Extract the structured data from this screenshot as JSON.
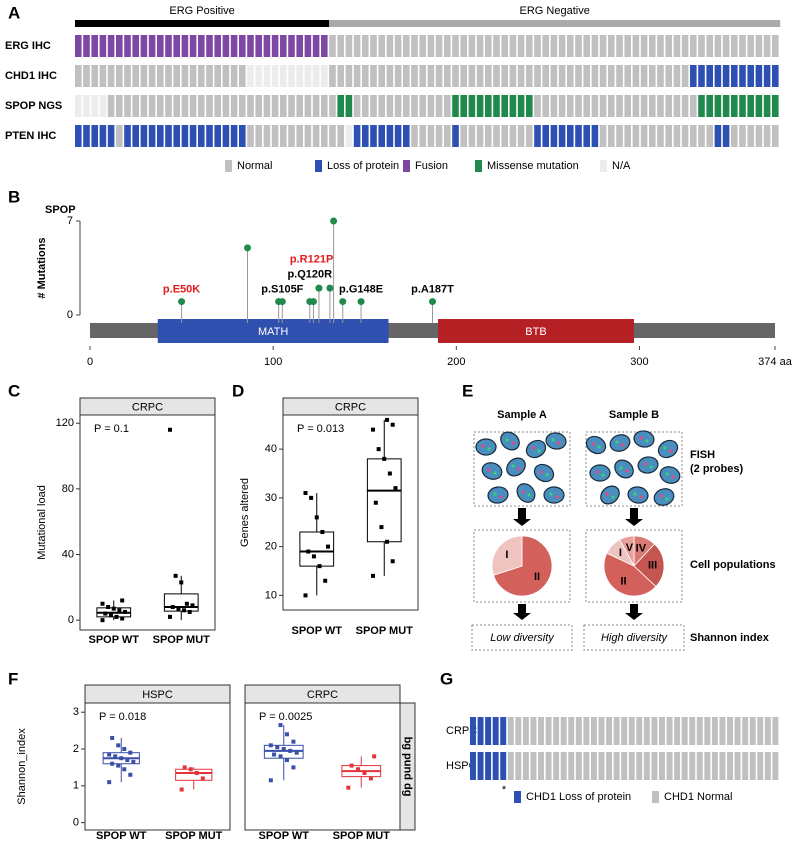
{
  "panel_labels": [
    "A",
    "B",
    "C",
    "D",
    "E",
    "F",
    "G"
  ],
  "chart_data": [
    {
      "type": "oncoprint",
      "header": [
        {
          "label": "ERG Positive",
          "span": 31,
          "color": "#000000"
        },
        {
          "label": "ERG Negative",
          "span": 55,
          "color": "#aaaaaa"
        }
      ],
      "series": [
        {
          "name": "ERG IHC",
          "values": [
            "Fusion",
            "Fusion",
            "Fusion",
            "Fusion",
            "Fusion",
            "Fusion",
            "Fusion",
            "Fusion",
            "Fusion",
            "Fusion",
            "Fusion",
            "Fusion",
            "Fusion",
            "Fusion",
            "Fusion",
            "Fusion",
            "Fusion",
            "Fusion",
            "Fusion",
            "Fusion",
            "Fusion",
            "Fusion",
            "Fusion",
            "Fusion",
            "Fusion",
            "Fusion",
            "Fusion",
            "Fusion",
            "Fusion",
            "Fusion",
            "Fusion",
            "Normal",
            "Normal",
            "Normal",
            "Normal",
            "Normal",
            "Normal",
            "Normal",
            "Normal",
            "Normal",
            "Normal",
            "Normal",
            "Normal",
            "Normal",
            "Normal",
            "Normal",
            "Normal",
            "Normal",
            "Normal",
            "Normal",
            "Normal",
            "Normal",
            "Normal",
            "Normal",
            "Normal",
            "Normal",
            "Normal",
            "Normal",
            "Normal",
            "Normal",
            "Normal",
            "Normal",
            "Normal",
            "Normal",
            "Normal",
            "Normal",
            "Normal",
            "Normal",
            "Normal",
            "Normal",
            "Normal",
            "Normal",
            "Normal",
            "Normal",
            "Normal",
            "Normal",
            "Normal",
            "Normal",
            "Normal",
            "Normal",
            "Normal",
            "Normal",
            "Normal",
            "Normal",
            "Normal",
            "Normal"
          ]
        },
        {
          "name": "CHD1 IHC",
          "values": [
            "Normal",
            "Normal",
            "Normal",
            "Normal",
            "Normal",
            "Normal",
            "Normal",
            "Normal",
            "Normal",
            "Normal",
            "Normal",
            "Normal",
            "Normal",
            "Normal",
            "Normal",
            "Normal",
            "Normal",
            "Normal",
            "Normal",
            "Normal",
            "Normal",
            "N/A",
            "N/A",
            "N/A",
            "N/A",
            "N/A",
            "N/A",
            "N/A",
            "N/A",
            "N/A",
            "N/A",
            "Normal",
            "Normal",
            "Normal",
            "Normal",
            "Normal",
            "Normal",
            "Normal",
            "Normal",
            "Normal",
            "Normal",
            "Normal",
            "Normal",
            "Normal",
            "Normal",
            "Normal",
            "Normal",
            "Normal",
            "Normal",
            "Normal",
            "Normal",
            "Normal",
            "Normal",
            "Normal",
            "Normal",
            "Normal",
            "Normal",
            "Normal",
            "Normal",
            "Normal",
            "Normal",
            "Normal",
            "Normal",
            "Normal",
            "Normal",
            "Normal",
            "Normal",
            "Normal",
            "Normal",
            "Normal",
            "Normal",
            "Normal",
            "Normal",
            "Normal",
            "Normal",
            "Loss of protein",
            "Loss of protein",
            "Loss of protein",
            "Loss of protein",
            "Loss of protein",
            "Loss of protein",
            "Loss of protein",
            "Loss of protein",
            "Loss of protein",
            "Loss of protein",
            "Loss of protein"
          ]
        },
        {
          "name": "SPOP NGS",
          "values": [
            "N/A",
            "N/A",
            "N/A",
            "N/A",
            "Normal",
            "Normal",
            "Normal",
            "Normal",
            "Normal",
            "Normal",
            "Normal",
            "Normal",
            "Normal",
            "Normal",
            "Normal",
            "Normal",
            "Normal",
            "Normal",
            "Normal",
            "Normal",
            "Normal",
            "Normal",
            "Normal",
            "Normal",
            "Normal",
            "Normal",
            "Normal",
            "Normal",
            "Normal",
            "Normal",
            "Normal",
            "Normal",
            "Missense mutation",
            "Missense mutation",
            "Normal",
            "Normal",
            "Normal",
            "Normal",
            "Normal",
            "Normal",
            "Normal",
            "Normal",
            "Normal",
            "Normal",
            "Normal",
            "Normal",
            "Missense mutation",
            "Missense mutation",
            "Missense mutation",
            "Missense mutation",
            "Missense mutation",
            "Missense mutation",
            "Missense mutation",
            "Missense mutation",
            "Missense mutation",
            "Missense mutation",
            "Normal",
            "Normal",
            "Normal",
            "Normal",
            "Normal",
            "Normal",
            "Normal",
            "Normal",
            "Normal",
            "Normal",
            "Normal",
            "Normal",
            "Normal",
            "Normal",
            "Normal",
            "Normal",
            "Normal",
            "Normal",
            "Normal",
            "Normal",
            "Missense mutation",
            "Missense mutation",
            "Missense mutation",
            "Missense mutation",
            "Missense mutation",
            "Missense mutation",
            "Missense mutation",
            "Missense mutation",
            "Missense mutation",
            "Missense mutation"
          ]
        },
        {
          "name": "PTEN IHC",
          "values": [
            "Loss of protein",
            "Loss of protein",
            "Loss of protein",
            "Loss of protein",
            "Loss of protein",
            "Normal",
            "Loss of protein",
            "Loss of protein",
            "Loss of protein",
            "Loss of protein",
            "Loss of protein",
            "Loss of protein",
            "Loss of protein",
            "Loss of protein",
            "Loss of protein",
            "Loss of protein",
            "Loss of protein",
            "Loss of protein",
            "Loss of protein",
            "Loss of protein",
            "Loss of protein",
            "Normal",
            "Normal",
            "Normal",
            "Normal",
            "Normal",
            "Normal",
            "Normal",
            "Normal",
            "Normal",
            "Normal",
            "Normal",
            "Normal",
            "N/A",
            "Loss of protein",
            "Loss of protein",
            "Loss of protein",
            "Loss of protein",
            "Loss of protein",
            "Loss of protein",
            "Loss of protein",
            "Normal",
            "Normal",
            "Normal",
            "Normal",
            "Normal",
            "Loss of protein",
            "Normal",
            "Normal",
            "Normal",
            "Normal",
            "Normal",
            "Normal",
            "Normal",
            "Normal",
            "Normal",
            "Loss of protein",
            "Loss of protein",
            "Loss of protein",
            "Loss of protein",
            "Loss of protein",
            "Loss of protein",
            "Loss of protein",
            "Loss of protein",
            "Normal",
            "Normal",
            "Normal",
            "Normal",
            "Normal",
            "Normal",
            "Normal",
            "Normal",
            "Normal",
            "Normal",
            "Normal",
            "Normal",
            "Normal",
            "Normal",
            "Loss of protein",
            "Loss of protein",
            "Normal",
            "Normal",
            "Normal",
            "Normal",
            "Normal",
            "Normal"
          ]
        }
      ],
      "legend": [
        {
          "label": "Normal",
          "color": "#c0c0c0"
        },
        {
          "label": "Loss of protein",
          "color": "#2f50b3"
        },
        {
          "label": "Fusion",
          "color": "#7e47a3"
        },
        {
          "label": "Missense mutation",
          "color": "#1f8a4c"
        },
        {
          "label": "N/A",
          "color": "#ececec"
        }
      ]
    },
    {
      "type": "lollipop",
      "title": "SPOP",
      "ylabel": "# Mutations",
      "x": [
        50,
        86,
        103,
        105,
        120,
        122,
        125,
        131,
        133,
        138,
        148,
        187
      ],
      "values": [
        1,
        5,
        1,
        1,
        1,
        1,
        2,
        2,
        7,
        1,
        1,
        1
      ],
      "color": "#1f8a4c",
      "xlim": [
        0,
        374
      ],
      "xticks": [
        0,
        100,
        200,
        300,
        {
          "value": 374,
          "label": "374 aa"
        }
      ],
      "ylim": [
        0,
        7
      ],
      "yticks": [
        0,
        7
      ],
      "domains": [
        {
          "name": "MATH",
          "start": 37,
          "end": 163,
          "color": "#3050b0"
        },
        {
          "name": "BTB",
          "start": 190,
          "end": 297,
          "color": "#b52025"
        }
      ],
      "annotations": [
        {
          "text": "p.E50K",
          "position": 50,
          "color": "#e41a1c"
        },
        {
          "text": "p.S105F",
          "position": 105,
          "color": "#000000"
        },
        {
          "text": "p.Q120R",
          "position": 120,
          "color": "#000000"
        },
        {
          "text": "p.R121P",
          "position": 121,
          "color": "#e41a1c"
        },
        {
          "text": "p.G148E",
          "position": 148,
          "color": "#000000"
        },
        {
          "text": "p.A187T",
          "position": 187,
          "color": "#000000"
        }
      ]
    },
    {
      "type": "box",
      "strip": "CRPC",
      "ylabel": "Mutational load",
      "p_value": "P = 0.1",
      "categories": [
        "SPOP WT",
        "SPOP MUT"
      ],
      "ylim": [
        -6,
        125
      ],
      "yticks": [
        0,
        40,
        80,
        120
      ],
      "boxes": [
        {
          "min": 0,
          "q1": 2,
          "median": 4.5,
          "q3": 7.5,
          "max": 12,
          "points": [
            0,
            1,
            2,
            3,
            4,
            5,
            6,
            7,
            8,
            10,
            12
          ]
        },
        {
          "min": 0,
          "q1": 5.5,
          "median": 8,
          "q3": 16,
          "max": 27,
          "points": [
            2,
            5,
            6,
            7,
            8,
            9,
            10,
            23,
            27,
            116
          ]
        }
      ]
    },
    {
      "type": "box",
      "strip": "CRPC",
      "ylabel": "Genes altered",
      "p_value": "P = 0.013",
      "categories": [
        "SPOP WT",
        "SPOP MUT"
      ],
      "ylim": [
        7,
        47
      ],
      "yticks": [
        10,
        20,
        30,
        40
      ],
      "boxes": [
        {
          "min": 10,
          "q1": 16,
          "median": 19,
          "q3": 23,
          "max": 31,
          "points": [
            10,
            13,
            16,
            18,
            19,
            20,
            23,
            26,
            30,
            31
          ]
        },
        {
          "min": 14,
          "q1": 21,
          "median": 31.5,
          "q3": 38,
          "max": 46,
          "points": [
            14,
            17,
            21,
            24,
            29,
            32,
            35,
            38,
            40,
            44,
            45,
            46
          ]
        }
      ]
    },
    {
      "type": "box",
      "ylabel": "Shannon_index",
      "side_strip": "bg pund dg",
      "categories": [
        "SPOP WT",
        "SPOP MUT"
      ],
      "colors": [
        "#3a4fa8",
        "#e4333b"
      ],
      "ylim": [
        -0.2,
        3.25
      ],
      "yticks": [
        0,
        1,
        2,
        3
      ],
      "facets": [
        {
          "strip": "HSPC",
          "p_value": "P = 0.018",
          "boxes": [
            {
              "min": 1.1,
              "q1": 1.6,
              "median": 1.75,
              "q3": 1.9,
              "max": 2.3,
              "points": [
                1.1,
                1.3,
                1.45,
                1.55,
                1.6,
                1.65,
                1.7,
                1.75,
                1.8,
                1.85,
                1.9,
                2.0,
                2.1,
                2.3
              ]
            },
            {
              "min": 0.9,
              "q1": 1.15,
              "median": 1.35,
              "q3": 1.45,
              "max": 1.5,
              "points": [
                0.9,
                1.2,
                1.35,
                1.45,
                1.5
              ]
            }
          ]
        },
        {
          "strip": "CRPC",
          "p_value": "P = 0.0025",
          "boxes": [
            {
              "min": 1.15,
              "q1": 1.75,
              "median": 1.95,
              "q3": 2.1,
              "max": 2.65,
              "points": [
                1.15,
                1.5,
                1.7,
                1.8,
                1.85,
                1.9,
                1.95,
                2.0,
                2.05,
                2.1,
                2.2,
                2.4,
                2.65
              ]
            },
            {
              "min": 0.95,
              "q1": 1.25,
              "median": 1.4,
              "q3": 1.55,
              "max": 1.8,
              "points": [
                0.95,
                1.2,
                1.35,
                1.45,
                1.55,
                1.8
              ]
            }
          ]
        }
      ]
    },
    {
      "type": "oncoprint",
      "series": [
        {
          "name": "CRPC",
          "values": [
            "CHD1 Loss of protein",
            "CHD1 Loss of protein",
            "CHD1 Loss of protein",
            "CHD1 Loss of protein",
            "CHD1 Loss of protein",
            "CHD1 Normal",
            "CHD1 Normal",
            "CHD1 Normal",
            "CHD1 Normal",
            "CHD1 Normal",
            "CHD1 Normal",
            "CHD1 Normal",
            "CHD1 Normal",
            "CHD1 Normal",
            "CHD1 Normal",
            "CHD1 Normal",
            "CHD1 Normal",
            "CHD1 Normal",
            "CHD1 Normal",
            "CHD1 Normal",
            "CHD1 Normal",
            "CHD1 Normal",
            "CHD1 Normal",
            "CHD1 Normal",
            "CHD1 Normal",
            "CHD1 Normal",
            "CHD1 Normal",
            "CHD1 Normal",
            "CHD1 Normal",
            "CHD1 Normal",
            "CHD1 Normal",
            "CHD1 Normal",
            "CHD1 Normal",
            "CHD1 Normal",
            "CHD1 Normal",
            "CHD1 Normal",
            "CHD1 Normal",
            "CHD1 Normal",
            "CHD1 Normal",
            "CHD1 Normal",
            "CHD1 Normal"
          ]
        },
        {
          "name": "HSPC",
          "values": [
            "CHD1 Loss of protein",
            "CHD1 Loss of protein",
            "CHD1 Loss of protein",
            "CHD1 Loss of protein",
            "CHD1 Loss of protein",
            "CHD1 Normal",
            "CHD1 Normal",
            "CHD1 Normal",
            "CHD1 Normal",
            "CHD1 Normal",
            "CHD1 Normal",
            "CHD1 Normal",
            "CHD1 Normal",
            "CHD1 Normal",
            "CHD1 Normal",
            "CHD1 Normal",
            "CHD1 Normal",
            "CHD1 Normal",
            "CHD1 Normal",
            "CHD1 Normal",
            "CHD1 Normal",
            "CHD1 Normal",
            "CHD1 Normal",
            "CHD1 Normal",
            "CHD1 Normal",
            "CHD1 Normal",
            "CHD1 Normal",
            "CHD1 Normal",
            "CHD1 Normal",
            "CHD1 Normal",
            "CHD1 Normal",
            "CHD1 Normal",
            "CHD1 Normal",
            "CHD1 Normal",
            "CHD1 Normal",
            "CHD1 Normal",
            "CHD1 Normal",
            "CHD1 Normal",
            "CHD1 Normal",
            "CHD1 Normal",
            "CHD1 Normal"
          ]
        }
      ],
      "legend": [
        {
          "label": "CHD1 Loss of protein",
          "color": "#2f50b3"
        },
        {
          "label": "CHD1 Normal",
          "color": "#c0c0c0"
        }
      ],
      "annotations": [
        {
          "text": "*",
          "column": 4
        }
      ]
    }
  ],
  "diagram": {
    "samples": [
      {
        "name": "Sample A",
        "diversity": "Low diversity",
        "pie": {
          "labels": [
            "II",
            "I"
          ],
          "values": [
            70,
            30
          ],
          "colors": [
            "#d4605c",
            "#efc4c0"
          ]
        }
      },
      {
        "name": "Sample B",
        "diversity": "High diversity",
        "pie": {
          "labels": [
            "IV",
            "III",
            "II",
            "I",
            "V"
          ],
          "values": [
            12,
            25,
            45,
            10,
            8
          ],
          "colors": [
            "#d97a75",
            "#c55550",
            "#d4605c",
            "#efc4c0",
            "#e9a09b"
          ]
        }
      }
    ],
    "row_labels": [
      "FISH",
      "(2 probes)",
      "Cell populations",
      "Shannon index"
    ]
  }
}
